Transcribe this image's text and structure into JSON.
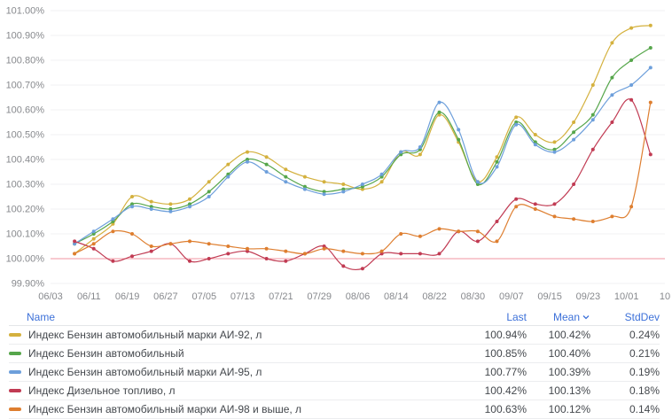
{
  "legend": {
    "columns": {
      "name": "Name",
      "last": "Last",
      "mean": "Mean",
      "stddev": "StdDev"
    },
    "sort_icon": "chevron-down",
    "sorted_by": "Mean"
  },
  "colors": {
    "axis_text": "#87898D",
    "grid": "#F0F1F3",
    "header_link": "#3D71D9",
    "row_text": "#44484D",
    "threshold": "#F2495C"
  },
  "chart_data": {
    "type": "line",
    "title": "",
    "xlabel": "",
    "ylabel": "",
    "ylim": [
      99.9,
      101.0
    ],
    "grid": true,
    "legend_position": "bottom-table",
    "x_max_offset": 128,
    "x_ticks": [
      {
        "label": "06/03",
        "offset": 0
      },
      {
        "label": "06/11",
        "offset": 8
      },
      {
        "label": "06/19",
        "offset": 16
      },
      {
        "label": "06/27",
        "offset": 24
      },
      {
        "label": "07/05",
        "offset": 32
      },
      {
        "label": "07/13",
        "offset": 40
      },
      {
        "label": "07/21",
        "offset": 48
      },
      {
        "label": "07/29",
        "offset": 56
      },
      {
        "label": "08/06",
        "offset": 64
      },
      {
        "label": "08/14",
        "offset": 72
      },
      {
        "label": "08/22",
        "offset": 80
      },
      {
        "label": "08/30",
        "offset": 88
      },
      {
        "label": "09/07",
        "offset": 96
      },
      {
        "label": "09/15",
        "offset": 104
      },
      {
        "label": "09/23",
        "offset": 112
      },
      {
        "label": "10/01",
        "offset": 120
      },
      {
        "label": "10",
        "offset": 128
      }
    ],
    "y_ticks": [
      {
        "label": "101.00%",
        "value": 101.0
      },
      {
        "label": "100.90%",
        "value": 100.9
      },
      {
        "label": "100.80%",
        "value": 100.8
      },
      {
        "label": "100.70%",
        "value": 100.7
      },
      {
        "label": "100.60%",
        "value": 100.6
      },
      {
        "label": "100.50%",
        "value": 100.5
      },
      {
        "label": "100.40%",
        "value": 100.4
      },
      {
        "label": "100.30%",
        "value": 100.3
      },
      {
        "label": "100.20%",
        "value": 100.2
      },
      {
        "label": "100.10%",
        "value": 100.1
      },
      {
        "label": "100.00%",
        "value": 100.0
      },
      {
        "label": "99.90%",
        "value": 99.9
      }
    ],
    "threshold": {
      "value": 100.0,
      "color": "#F2495C"
    },
    "x_offsets": [
      5,
      9,
      13,
      17,
      21,
      25,
      29,
      33,
      37,
      41,
      45,
      49,
      53,
      57,
      61,
      65,
      69,
      73,
      77,
      81,
      85,
      89,
      93,
      97,
      101,
      105,
      109,
      113,
      117,
      121,
      125
    ],
    "series": [
      {
        "name": "Индекс Бензин автомобильный марки АИ-92, л",
        "color": "#D4B13E",
        "last": "100.94%",
        "mean": "100.42%",
        "stddev": "0.24%",
        "values": [
          100.02,
          100.08,
          100.14,
          100.25,
          100.23,
          100.22,
          100.24,
          100.31,
          100.38,
          100.43,
          100.41,
          100.36,
          100.33,
          100.31,
          100.3,
          100.28,
          100.31,
          100.43,
          100.42,
          100.58,
          100.47,
          100.31,
          100.41,
          100.57,
          100.5,
          100.47,
          100.55,
          100.7,
          100.87,
          100.93,
          100.94
        ]
      },
      {
        "name": "Индекс Бензин автомобильный",
        "color": "#56A64B",
        "last": "100.85%",
        "mean": "100.40%",
        "stddev": "0.21%",
        "values": [
          100.06,
          100.1,
          100.15,
          100.22,
          100.21,
          100.2,
          100.22,
          100.27,
          100.34,
          100.4,
          100.38,
          100.33,
          100.29,
          100.27,
          100.28,
          100.29,
          100.33,
          100.42,
          100.44,
          100.59,
          100.48,
          100.3,
          100.39,
          100.55,
          100.47,
          100.44,
          100.51,
          100.58,
          100.73,
          100.8,
          100.85
        ]
      },
      {
        "name": "Индекс Бензин автомобильный марки АИ-95, л",
        "color": "#6D9FDB",
        "last": "100.77%",
        "mean": "100.39%",
        "stddev": "0.19%",
        "values": [
          100.06,
          100.11,
          100.16,
          100.21,
          100.2,
          100.19,
          100.21,
          100.25,
          100.33,
          100.39,
          100.35,
          100.31,
          100.28,
          100.26,
          100.27,
          100.3,
          100.34,
          100.43,
          100.45,
          100.63,
          100.52,
          100.31,
          100.37,
          100.54,
          100.46,
          100.43,
          100.48,
          100.56,
          100.66,
          100.7,
          100.77
        ]
      },
      {
        "name": "Индекс Дизельное топливо, л",
        "color": "#C13B53",
        "last": "100.42%",
        "mean": "100.13%",
        "stddev": "0.18%",
        "values": [
          100.07,
          100.04,
          99.99,
          100.01,
          100.03,
          100.06,
          99.99,
          100.0,
          100.02,
          100.03,
          100.0,
          99.99,
          100.02,
          100.05,
          99.97,
          99.96,
          100.02,
          100.02,
          100.02,
          100.02,
          100.11,
          100.07,
          100.15,
          100.24,
          100.22,
          100.22,
          100.3,
          100.44,
          100.55,
          100.64,
          100.42
        ]
      },
      {
        "name": "Индекс Бензин автомобильный марки АИ-98 и выше, л",
        "color": "#DE7E2F",
        "last": "100.63%",
        "mean": "100.12%",
        "stddev": "0.14%",
        "values": [
          100.02,
          100.06,
          100.11,
          100.1,
          100.05,
          100.06,
          100.07,
          100.06,
          100.05,
          100.04,
          100.04,
          100.03,
          100.02,
          100.04,
          100.03,
          100.02,
          100.03,
          100.1,
          100.09,
          100.12,
          100.11,
          100.11,
          100.07,
          100.21,
          100.2,
          100.17,
          100.16,
          100.15,
          100.17,
          100.21,
          100.63
        ]
      }
    ]
  }
}
